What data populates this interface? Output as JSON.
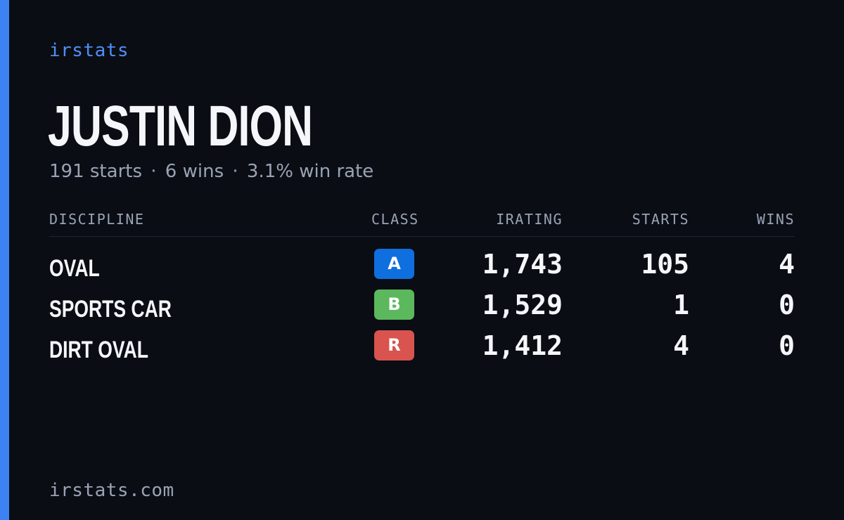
{
  "brand": "irstats",
  "driver": {
    "name": "JUSTIN DION",
    "summary": {
      "starts": "191 starts",
      "wins": "6 wins",
      "win_rate": "3.1% win rate",
      "separator": "·"
    }
  },
  "table": {
    "headers": {
      "discipline": "DISCIPLINE",
      "class": "CLASS",
      "irating": "IRATING",
      "starts": "STARTS",
      "wins": "WINS"
    },
    "rows": [
      {
        "discipline": "OVAL",
        "class": "A",
        "class_color": "#0f6fde",
        "irating": "1,743",
        "starts": "105",
        "wins": "4"
      },
      {
        "discipline": "SPORTS CAR",
        "class": "B",
        "class_color": "#5cb85c",
        "irating": "1,529",
        "starts": "1",
        "wins": "0"
      },
      {
        "discipline": "DIRT OVAL",
        "class": "R",
        "class_color": "#d9534f",
        "irating": "1,412",
        "starts": "4",
        "wins": "0"
      }
    ]
  },
  "footer": {
    "domain": "irstats.com"
  },
  "colors": {
    "background": "#0a0d14",
    "accent": "#3d82f2",
    "brand_text": "#4f8ff5",
    "muted_text": "#9aa3b4",
    "primary_text": "#f4f6fa"
  }
}
